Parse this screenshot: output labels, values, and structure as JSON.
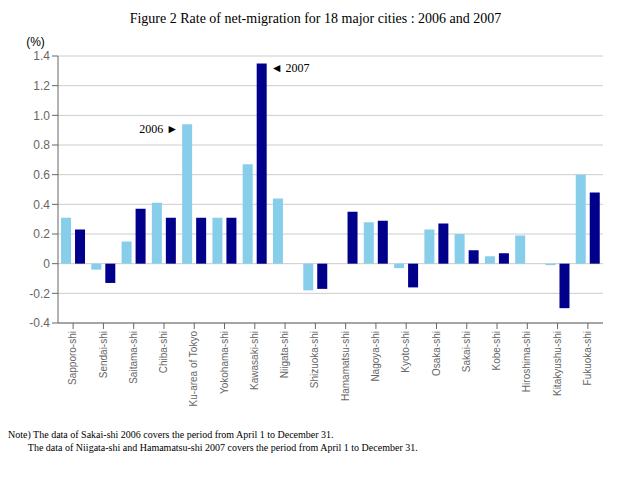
{
  "chart_data": {
    "type": "bar",
    "title": "Figure 2  Rate of net-migration for 18 major cities : 2006 and 2007",
    "ylabel": "(%)",
    "categories": [
      "Sapporo-shi",
      "Sendai-shi",
      "Saitama-shi",
      "Chiba-shi",
      "Ku-area of Tokyo",
      "Yokohama-shi",
      "Kawasaki-shi",
      "Niigata-shi",
      "Shizuoka-shi",
      "Hamamatsu-shi",
      "Nagoya-shi",
      "Kyoto-shi",
      "Osaka-shi",
      "Sakai-shi",
      "Kobe-shi",
      "Hiroshima-shi",
      "Kitakyushu-shi",
      "Fukuoka-shi"
    ],
    "series": [
      {
        "color": "#87CEEB",
        "values": [
          0.31,
          -0.04,
          0.15,
          0.41,
          0.94,
          0.31,
          0.67,
          0.44,
          -0.18,
          0.0,
          0.28,
          -0.03,
          0.23,
          0.2,
          0.05,
          0.19,
          -0.01,
          0.6
        ]
      },
      {
        "color": "#00008B",
        "values": [
          0.23,
          -0.13,
          0.37,
          0.31,
          0.31,
          0.31,
          1.35,
          0.0,
          -0.17,
          0.35,
          0.29,
          -0.16,
          0.27,
          0.09,
          0.07,
          0.0,
          -0.3,
          0.48
        ]
      }
    ],
    "ylim": [
      -0.4,
      1.4
    ],
    "yticks": [
      -0.4,
      -0.2,
      0,
      0.2,
      0.4,
      0.6,
      0.8,
      {
        "value": 1,
        "label": "1.0"
      },
      1.2,
      1.4
    ],
    "grid": true,
    "annotations": [
      "2006 ►",
      "◄ 2007"
    ],
    "notes": [
      "Note) The data of Sakai-shi 2006 covers the period from April 1 to December 31.",
      "        The data of Niigata-shi and Hamamatsu-shi 2007 covers the period from April 1 to December 31."
    ]
  }
}
